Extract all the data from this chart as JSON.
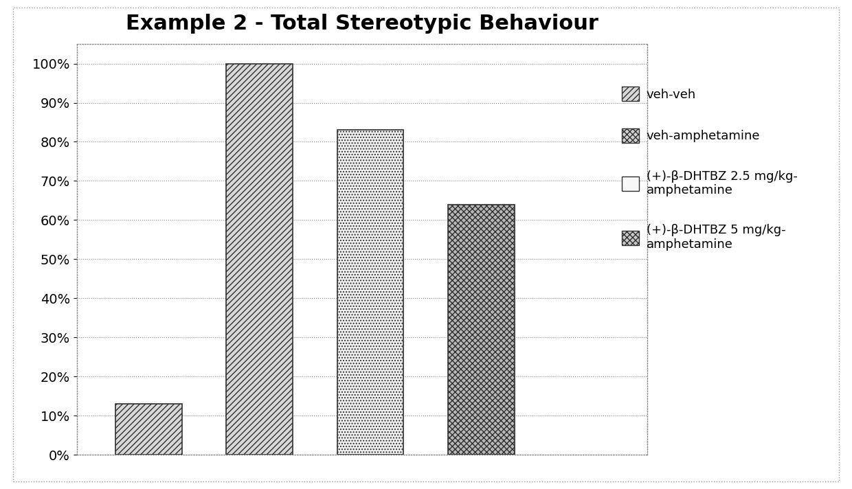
{
  "title": "Example 2 - Total Stereotypic Behaviour",
  "values": [
    13,
    100,
    83,
    64
  ],
  "legend_labels": [
    "veh-veh",
    "veh-amphetamine",
    "(+)-β-DHTBZ 2.5 mg/kg-\namphetamine",
    "(+)-β-DHTBZ 5 mg/kg-\namphetamine"
  ],
  "ylim": [
    0,
    105
  ],
  "yticks": [
    0,
    10,
    20,
    30,
    40,
    50,
    60,
    70,
    80,
    90,
    100
  ],
  "yticklabels": [
    "0%",
    "10%",
    "20%",
    "30%",
    "40%",
    "50%",
    "60%",
    "70%",
    "80%",
    "90%",
    "100%"
  ],
  "background_color": "#ffffff",
  "title_fontsize": 22,
  "tick_fontsize": 14,
  "legend_fontsize": 13,
  "bar_width": 0.6,
  "hatch_patterns": [
    "////",
    "////",
    "....",
    "xxxx"
  ],
  "bar_facecolors": [
    "#d8d8d8",
    "#d8d8d8",
    "#f0f0f0",
    "#b8b8b8"
  ],
  "bar_edgecolors": [
    "#303030",
    "#303030",
    "#303030",
    "#303030"
  ],
  "legend_facecolors": [
    "#d8d8d8",
    "#d8d8d8",
    "#f8f8f8",
    "#b8b8b8"
  ],
  "legend_hatch_patterns": [
    "////",
    "xxxx",
    "",
    "xxxx"
  ]
}
